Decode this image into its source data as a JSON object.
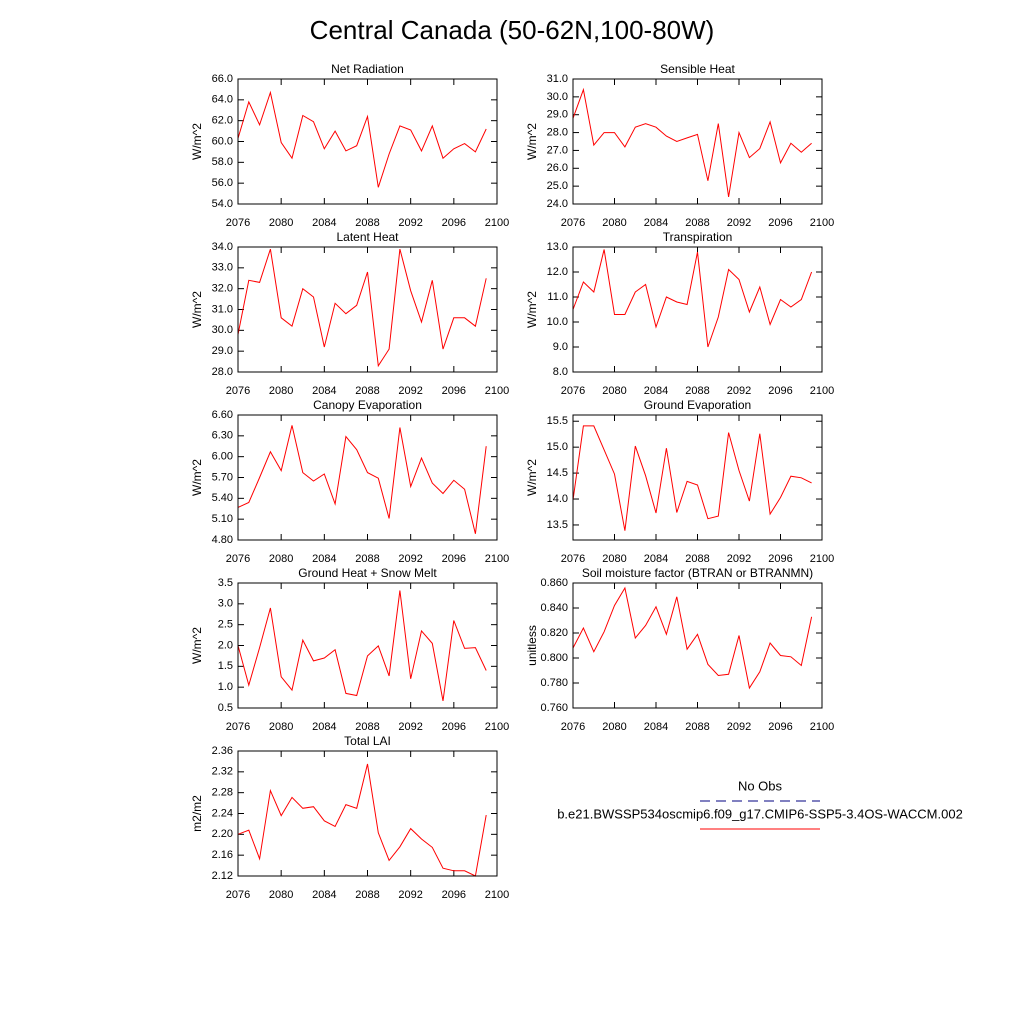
{
  "title": "Central Canada (50-62N,100-80W)",
  "legend": [
    {
      "name": "No Obs",
      "color": "#000080",
      "dashed": true
    },
    {
      "name": "b.e21.BWSSP534oscmip6.f09_g17.CMIP6-SSP5-3.4OS-WACCM.002",
      "color": "#ff0000",
      "dashed": false
    }
  ],
  "chart_data": [
    {
      "type": "line",
      "title": "Net Radiation",
      "ylabel": "W/m^2",
      "color": "#ff0000",
      "x": [
        2076,
        2077,
        2078,
        2079,
        2080,
        2081,
        2082,
        2083,
        2084,
        2085,
        2086,
        2087,
        2088,
        2089,
        2090,
        2091,
        2092,
        2093,
        2094,
        2095,
        2096,
        2097,
        2098,
        2099
      ],
      "values": [
        60.3,
        63.8,
        61.6,
        64.7,
        59.9,
        58.4,
        62.5,
        61.9,
        59.3,
        61.0,
        59.1,
        59.6,
        62.4,
        55.6,
        58.8,
        61.5,
        61.1,
        59.1,
        61.5,
        58.4,
        59.3,
        59.8,
        59.0,
        61.2
      ],
      "xlim": [
        2076,
        2100
      ],
      "xticks": [
        2076,
        2080,
        2084,
        2088,
        2092,
        2096,
        2100
      ],
      "ylim": [
        54,
        66
      ],
      "yticks": [
        {
          "value": 54,
          "label": "54.0"
        },
        {
          "value": 56,
          "label": "56.0"
        },
        {
          "value": 58,
          "label": "58.0"
        },
        {
          "value": 60,
          "label": "60.0"
        },
        {
          "value": 62,
          "label": "62.0"
        },
        {
          "value": 64,
          "label": "64.0"
        },
        {
          "value": 66,
          "label": "66.0"
        }
      ]
    },
    {
      "type": "line",
      "title": "Sensible Heat",
      "ylabel": "W/m^2",
      "color": "#ff0000",
      "x": [
        2076,
        2077,
        2078,
        2079,
        2080,
        2081,
        2082,
        2083,
        2084,
        2085,
        2086,
        2087,
        2088,
        2089,
        2090,
        2091,
        2092,
        2093,
        2094,
        2095,
        2096,
        2097,
        2098,
        2099
      ],
      "values": [
        28.8,
        30.4,
        27.3,
        28.0,
        28.0,
        27.2,
        28.3,
        28.5,
        28.3,
        27.8,
        27.5,
        27.7,
        27.9,
        25.3,
        28.5,
        24.4,
        28.0,
        26.6,
        27.1,
        28.6,
        26.3,
        27.4,
        26.9,
        27.4
      ],
      "xlim": [
        2076,
        2100
      ],
      "xticks": [
        2076,
        2080,
        2084,
        2088,
        2092,
        2096,
        2100
      ],
      "ylim": [
        24,
        31
      ],
      "yticks": [
        {
          "value": 24,
          "label": "24.0"
        },
        {
          "value": 25,
          "label": "25.0"
        },
        {
          "value": 26,
          "label": "26.0"
        },
        {
          "value": 27,
          "label": "27.0"
        },
        {
          "value": 28,
          "label": "28.0"
        },
        {
          "value": 29,
          "label": "29.0"
        },
        {
          "value": 30,
          "label": "30.0"
        },
        {
          "value": 31,
          "label": "31.0"
        }
      ]
    },
    {
      "type": "line",
      "title": "Latent Heat",
      "ylabel": "W/m^2",
      "color": "#ff0000",
      "x": [
        2076,
        2077,
        2078,
        2079,
        2080,
        2081,
        2082,
        2083,
        2084,
        2085,
        2086,
        2087,
        2088,
        2089,
        2090,
        2091,
        2092,
        2093,
        2094,
        2095,
        2096,
        2097,
        2098,
        2099
      ],
      "values": [
        29.8,
        32.4,
        32.3,
        33.9,
        30.6,
        30.2,
        32.0,
        31.6,
        29.2,
        31.3,
        30.8,
        31.2,
        32.8,
        28.3,
        29.1,
        33.9,
        31.9,
        30.4,
        32.4,
        29.1,
        30.6,
        30.6,
        30.2,
        32.5
      ],
      "xlim": [
        2076,
        2100
      ],
      "xticks": [
        2076,
        2080,
        2084,
        2088,
        2092,
        2096,
        2100
      ],
      "ylim": [
        28,
        34
      ],
      "yticks": [
        {
          "value": 28,
          "label": "28.0"
        },
        {
          "value": 29,
          "label": "29.0"
        },
        {
          "value": 30,
          "label": "30.0"
        },
        {
          "value": 31,
          "label": "31.0"
        },
        {
          "value": 32,
          "label": "32.0"
        },
        {
          "value": 33,
          "label": "33.0"
        },
        {
          "value": 34,
          "label": "34.0"
        }
      ]
    },
    {
      "type": "line",
      "title": "Transpiration",
      "ylabel": "W/m^2",
      "color": "#ff0000",
      "x": [
        2076,
        2077,
        2078,
        2079,
        2080,
        2081,
        2082,
        2083,
        2084,
        2085,
        2086,
        2087,
        2088,
        2089,
        2090,
        2091,
        2092,
        2093,
        2094,
        2095,
        2096,
        2097,
        2098,
        2099
      ],
      "values": [
        10.5,
        11.6,
        11.2,
        12.9,
        10.3,
        10.3,
        11.2,
        11.5,
        9.8,
        11.0,
        10.8,
        10.7,
        12.8,
        9.0,
        10.2,
        12.1,
        11.7,
        10.4,
        11.4,
        9.9,
        10.9,
        10.6,
        10.9,
        12.0
      ],
      "xlim": [
        2076,
        2100
      ],
      "xticks": [
        2076,
        2080,
        2084,
        2088,
        2092,
        2096,
        2100
      ],
      "ylim": [
        8,
        13
      ],
      "yticks": [
        {
          "value": 8,
          "label": "8.0"
        },
        {
          "value": 9,
          "label": "9.0"
        },
        {
          "value": 10,
          "label": "10.0"
        },
        {
          "value": 11,
          "label": "11.0"
        },
        {
          "value": 12,
          "label": "12.0"
        },
        {
          "value": 13,
          "label": "13.0"
        }
      ]
    },
    {
      "type": "line",
      "title": "Canopy Evaporation",
      "ylabel": "W/m^2",
      "color": "#ff0000",
      "x": [
        2076,
        2077,
        2078,
        2079,
        2080,
        2081,
        2082,
        2083,
        2084,
        2085,
        2086,
        2087,
        2088,
        2089,
        2090,
        2091,
        2092,
        2093,
        2094,
        2095,
        2096,
        2097,
        2098,
        2099
      ],
      "values": [
        5.27,
        5.34,
        5.7,
        6.07,
        5.8,
        6.45,
        5.77,
        5.65,
        5.75,
        5.32,
        6.29,
        6.1,
        5.77,
        5.69,
        5.11,
        6.42,
        5.57,
        5.98,
        5.62,
        5.47,
        5.66,
        5.53,
        4.89,
        6.15
      ],
      "xlim": [
        2076,
        2100
      ],
      "xticks": [
        2076,
        2080,
        2084,
        2088,
        2092,
        2096,
        2100
      ],
      "ylim": [
        4.8,
        6.6
      ],
      "yticks": [
        {
          "value": 4.8,
          "label": "4.80"
        },
        {
          "value": 5.1,
          "label": "5.10"
        },
        {
          "value": 5.4,
          "label": "5.40"
        },
        {
          "value": 5.7,
          "label": "5.70"
        },
        {
          "value": 6.0,
          "label": "6.00"
        },
        {
          "value": 6.3,
          "label": "6.30"
        },
        {
          "value": 6.6,
          "label": "6.60"
        }
      ]
    },
    {
      "type": "line",
      "title": "Ground Evaporation",
      "ylabel": "W/m^2",
      "color": "#ff0000",
      "x": [
        2076,
        2077,
        2078,
        2079,
        2080,
        2081,
        2082,
        2083,
        2084,
        2085,
        2086,
        2087,
        2088,
        2089,
        2090,
        2091,
        2092,
        2093,
        2094,
        2095,
        2096,
        2097,
        2098,
        2099
      ],
      "values": [
        13.98,
        15.41,
        15.41,
        14.95,
        14.48,
        13.39,
        15.02,
        14.45,
        13.73,
        14.98,
        13.74,
        14.34,
        14.27,
        13.62,
        13.67,
        15.28,
        14.55,
        13.96,
        15.26,
        13.71,
        14.03,
        14.44,
        14.41,
        14.31
      ],
      "xlim": [
        2076,
        2100
      ],
      "xticks": [
        2076,
        2080,
        2084,
        2088,
        2092,
        2096,
        2100
      ],
      "ylim": [
        13.21,
        15.62
      ],
      "yticks": [
        13.5,
        {
          "value": 14,
          "label": "14.0"
        },
        14.5,
        {
          "value": 15,
          "label": "15.0"
        },
        15.5
      ]
    },
    {
      "type": "line",
      "title": "Ground Heat + Snow Melt",
      "ylabel": "W/m^2",
      "color": "#ff0000",
      "x": [
        2076,
        2077,
        2078,
        2079,
        2080,
        2081,
        2082,
        2083,
        2084,
        2085,
        2086,
        2087,
        2088,
        2089,
        2090,
        2091,
        2092,
        2093,
        2094,
        2095,
        2096,
        2097,
        2098,
        2099
      ],
      "values": [
        2.0,
        1.05,
        1.95,
        2.9,
        1.25,
        0.93,
        2.13,
        1.63,
        1.7,
        1.9,
        0.85,
        0.8,
        1.75,
        1.99,
        1.27,
        3.32,
        1.2,
        2.35,
        2.05,
        0.67,
        2.6,
        1.93,
        1.95,
        1.4
      ],
      "xlim": [
        2076,
        2100
      ],
      "xticks": [
        2076,
        2080,
        2084,
        2088,
        2092,
        2096,
        2100
      ],
      "ylim": [
        0.5,
        3.5
      ],
      "yticks": [
        0.5,
        {
          "value": 1,
          "label": "1.0"
        },
        1.5,
        {
          "value": 2,
          "label": "2.0"
        },
        2.5,
        {
          "value": 3,
          "label": "3.0"
        },
        3.5
      ]
    },
    {
      "type": "line",
      "title": "Soil moisture factor (BTRAN or BTRANMN)",
      "ylabel": "unitless",
      "color": "#ff0000",
      "x": [
        2076,
        2077,
        2078,
        2079,
        2080,
        2081,
        2082,
        2083,
        2084,
        2085,
        2086,
        2087,
        2088,
        2089,
        2090,
        2091,
        2092,
        2093,
        2094,
        2095,
        2096,
        2097,
        2098,
        2099
      ],
      "values": [
        0.808,
        0.824,
        0.805,
        0.821,
        0.842,
        0.856,
        0.816,
        0.826,
        0.841,
        0.819,
        0.849,
        0.807,
        0.819,
        0.795,
        0.786,
        0.787,
        0.818,
        0.776,
        0.789,
        0.812,
        0.802,
        0.801,
        0.794,
        0.833
      ],
      "xlim": [
        2076,
        2100
      ],
      "xticks": [
        2076,
        2080,
        2084,
        2088,
        2092,
        2096,
        2100
      ],
      "ylim": [
        0.76,
        0.86
      ],
      "yticks": [
        {
          "value": 0.76,
          "label": "0.760"
        },
        {
          "value": 0.78,
          "label": "0.780"
        },
        {
          "value": 0.8,
          "label": "0.800"
        },
        {
          "value": 0.82,
          "label": "0.820"
        },
        {
          "value": 0.84,
          "label": "0.840"
        },
        {
          "value": 0.86,
          "label": "0.860"
        }
      ]
    },
    {
      "type": "line",
      "title": "Total LAI",
      "ylabel": "m2/m2",
      "color": "#ff0000",
      "x": [
        2076,
        2077,
        2078,
        2079,
        2080,
        2081,
        2082,
        2083,
        2084,
        2085,
        2086,
        2087,
        2088,
        2089,
        2090,
        2091,
        2092,
        2093,
        2094,
        2095,
        2096,
        2097,
        2098,
        2099
      ],
      "values": [
        2.2,
        2.208,
        2.153,
        2.284,
        2.236,
        2.271,
        2.25,
        2.253,
        2.226,
        2.215,
        2.257,
        2.25,
        2.335,
        2.203,
        2.15,
        2.176,
        2.211,
        2.191,
        2.175,
        2.135,
        2.13,
        2.13,
        2.12,
        2.237
      ],
      "xlim": [
        2076,
        2100
      ],
      "xticks": [
        2076,
        2080,
        2084,
        2088,
        2092,
        2096,
        2100
      ],
      "ylim": [
        2.12,
        2.36
      ],
      "yticks": [
        2.12,
        2.16,
        {
          "value": 2.2,
          "label": "2.20"
        },
        2.24,
        2.28,
        2.32,
        2.36
      ]
    }
  ]
}
